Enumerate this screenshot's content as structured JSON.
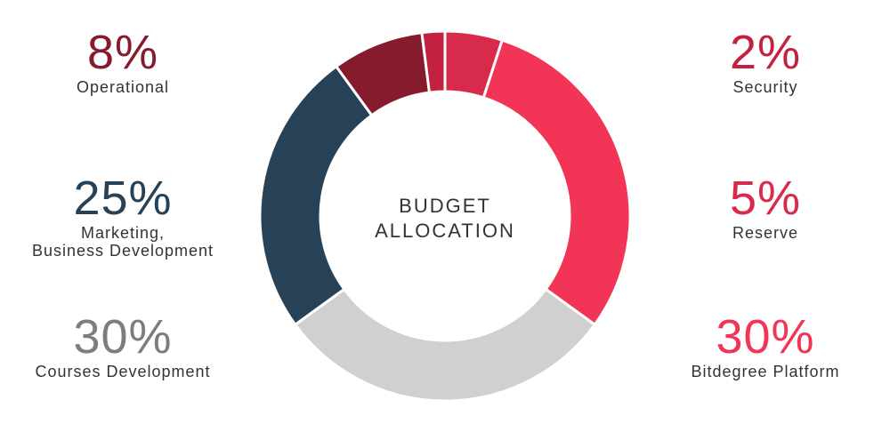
{
  "chart_data": {
    "type": "pie",
    "donut": true,
    "title_lines": [
      "BUDGET",
      "ALLOCATION"
    ],
    "slices": [
      {
        "label": "Reserve",
        "value": 5,
        "pct_text": "5%",
        "color": "#d82b4b"
      },
      {
        "label": "Bitdegree Platform",
        "value": 30,
        "pct_text": "30%",
        "color": "#f23557"
      },
      {
        "label": "Courses Development",
        "value": 30,
        "pct_text": "30%",
        "color": "#d0d0d0"
      },
      {
        "label": "Marketing, Business Development",
        "label_lines": [
          "Marketing,",
          "Business Development"
        ],
        "value": 25,
        "pct_text": "25%",
        "color": "#274257"
      },
      {
        "label": "Operational",
        "value": 8,
        "pct_text": "8%",
        "color": "#861b2e"
      },
      {
        "label": "Security",
        "value": 2,
        "pct_text": "2%",
        "color": "#c3213f"
      }
    ],
    "label_colors": {
      "operational": "#861b2e",
      "marketing": "#274257",
      "courses": "#7d7d7d",
      "security": "#c3213f",
      "reserve": "#d82b4b",
      "platform": "#f23557"
    }
  }
}
